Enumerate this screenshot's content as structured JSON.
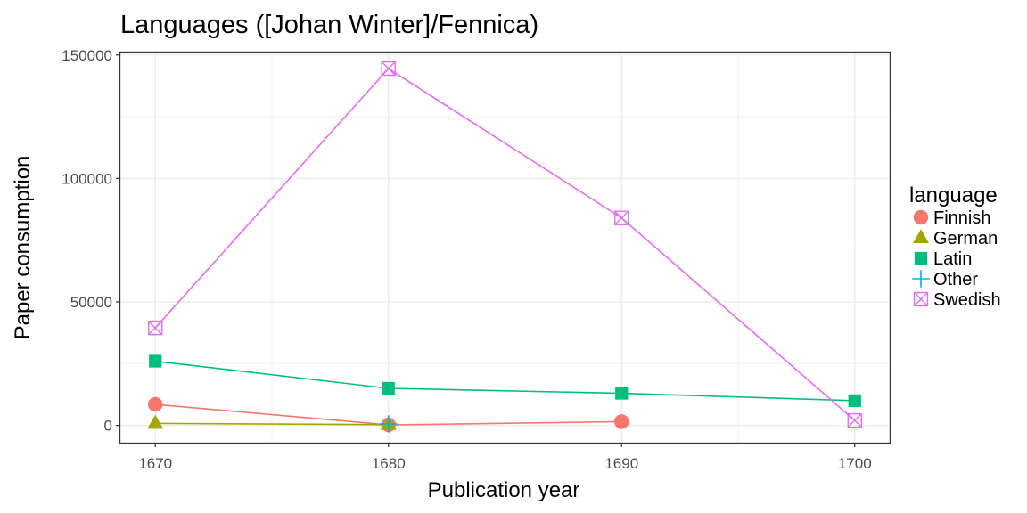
{
  "chart_data": {
    "type": "line",
    "title": "Languages ([Johan Winter]/Fennica)",
    "xlabel": "Publication year",
    "ylabel": "Paper consumption",
    "xlim": [
      1668.5,
      1701.5
    ],
    "ylim": [
      -7000,
      151000
    ],
    "x_ticks": [
      1670,
      1680,
      1690,
      1700
    ],
    "x_minor_ticks": [
      1675,
      1685,
      1695
    ],
    "y_ticks": [
      0,
      50000,
      100000,
      150000
    ],
    "y_minor_ticks": [
      25000,
      75000,
      125000
    ],
    "grid": true,
    "legend": {
      "title": "language",
      "position": "right"
    },
    "series": [
      {
        "name": "Finnish",
        "color": "#F8766D",
        "shape": "circle",
        "points": [
          {
            "x": 1670,
            "y": 8500
          },
          {
            "x": 1680,
            "y": 200
          },
          {
            "x": 1690,
            "y": 1500
          }
        ]
      },
      {
        "name": "German",
        "color": "#A3A500",
        "shape": "triangle",
        "points": [
          {
            "x": 1670,
            "y": 800
          },
          {
            "x": 1680,
            "y": 300
          }
        ]
      },
      {
        "name": "Latin",
        "color": "#00BF7D",
        "shape": "square",
        "points": [
          {
            "x": 1670,
            "y": 26000
          },
          {
            "x": 1680,
            "y": 15000
          },
          {
            "x": 1690,
            "y": 13000
          },
          {
            "x": 1700,
            "y": 10000
          }
        ]
      },
      {
        "name": "Other",
        "color": "#00B0F6",
        "shape": "plus",
        "points": [
          {
            "x": 1680,
            "y": 600
          }
        ]
      },
      {
        "name": "Swedish",
        "color": "#E76BF3",
        "shape": "boxcross",
        "points": [
          {
            "x": 1670,
            "y": 39500
          },
          {
            "x": 1680,
            "y": 144500
          },
          {
            "x": 1690,
            "y": 84000
          },
          {
            "x": 1700,
            "y": 2000
          }
        ]
      }
    ]
  }
}
